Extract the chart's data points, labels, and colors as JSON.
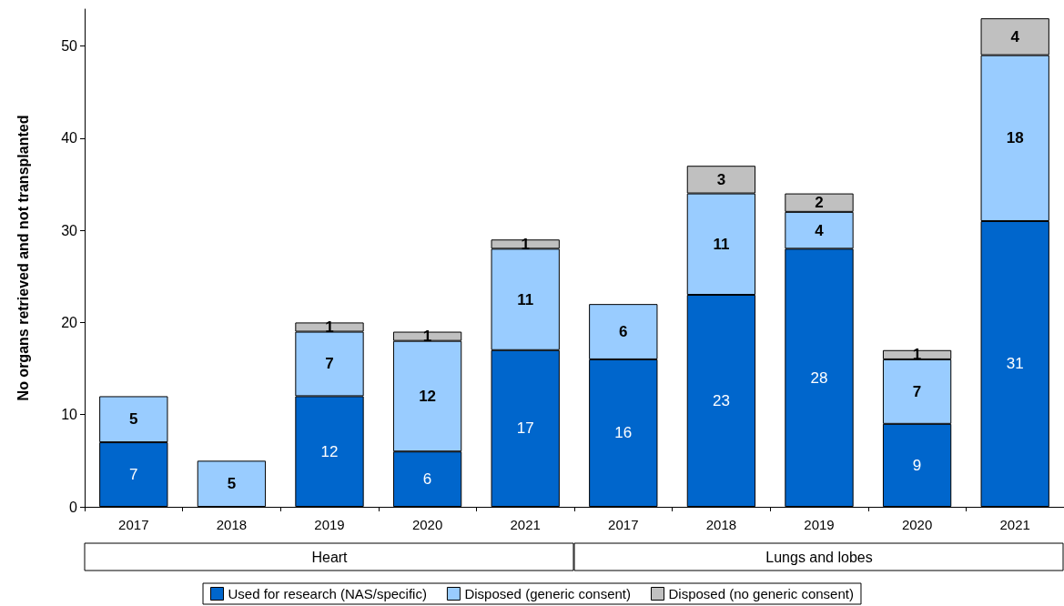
{
  "chart_data": {
    "type": "bar",
    "stacked": true,
    "ylabel": "No organs retrieved and not transplanted",
    "categories": [
      "2017",
      "2018",
      "2019",
      "2020",
      "2021",
      "2017",
      "2018",
      "2019",
      "2020",
      "2021"
    ],
    "series": [
      {
        "name": "Used for research (NAS/specific)",
        "color": "#0066cc",
        "values": [
          7,
          null,
          12,
          6,
          17,
          16,
          23,
          28,
          9,
          31
        ]
      },
      {
        "name": "Disposed (generic consent)",
        "color": "#99ccff",
        "values": [
          5,
          5,
          7,
          12,
          11,
          6,
          11,
          4,
          7,
          18
        ]
      },
      {
        "name": "Disposed (no generic consent)",
        "color": "#c0c0c0",
        "values": [
          null,
          null,
          1,
          1,
          1,
          null,
          3,
          2,
          1,
          4
        ]
      }
    ],
    "annotations": [
      "Heart",
      "Lungs and lobes"
    ],
    "ylim": [
      0,
      54
    ],
    "yticks": [
      0,
      10,
      20,
      30,
      40,
      50
    ],
    "data_labels": true,
    "grid": false,
    "legend": "bottom"
  }
}
